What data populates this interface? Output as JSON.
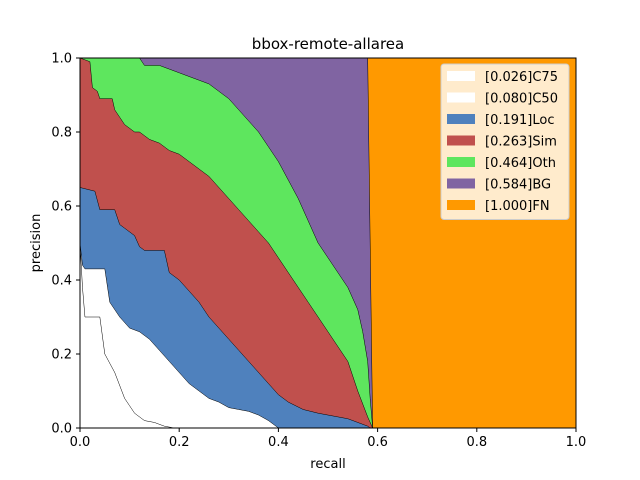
{
  "chart_data": {
    "type": "area",
    "title": "bbox-remote-allarea",
    "xlabel": "recall",
    "ylabel": "precision",
    "xlim": [
      0,
      1
    ],
    "ylim": [
      0,
      1
    ],
    "x_ticks": [
      "0.0",
      "0.2",
      "0.4",
      "0.6",
      "0.8",
      "1.0"
    ],
    "y_ticks": [
      "0.0",
      "0.2",
      "0.4",
      "0.6",
      "0.8",
      "1.0"
    ],
    "legend_position": "top-right",
    "grid": false,
    "series": [
      {
        "name": "[0.026]C75",
        "color": "#ffffff",
        "x": [
          0,
          0.005,
          0.01,
          0.04,
          0.05,
          0.07,
          0.09,
          0.1,
          0.11,
          0.12,
          0.13,
          0.15,
          0.17,
          0.19
        ],
        "y": [
          0.5,
          0.38,
          0.3,
          0.3,
          0.2,
          0.15,
          0.08,
          0.06,
          0.04,
          0.03,
          0.02,
          0.015,
          0.005,
          0
        ]
      },
      {
        "name": "[0.080]C50",
        "color": "#ffffff",
        "x": [
          0,
          0.005,
          0.01,
          0.05,
          0.06,
          0.08,
          0.1,
          0.12,
          0.14,
          0.16,
          0.18,
          0.2,
          0.22,
          0.24,
          0.26,
          0.28,
          0.3,
          0.32,
          0.34,
          0.36,
          0.38,
          0.395,
          0.4
        ],
        "y": [
          0.5,
          0.44,
          0.43,
          0.43,
          0.34,
          0.3,
          0.27,
          0.26,
          0.24,
          0.21,
          0.18,
          0.15,
          0.12,
          0.1,
          0.08,
          0.07,
          0.055,
          0.05,
          0.045,
          0.035,
          0.02,
          0.005,
          0
        ]
      },
      {
        "name": "[0.191]Loc",
        "color": "#4f81bd",
        "x": [
          0,
          0.03,
          0.04,
          0.07,
          0.08,
          0.09,
          0.1,
          0.11,
          0.12,
          0.13,
          0.17,
          0.18,
          0.2,
          0.22,
          0.24,
          0.26,
          0.28,
          0.3,
          0.32,
          0.34,
          0.36,
          0.38,
          0.4,
          0.42,
          0.45,
          0.48,
          0.5,
          0.52,
          0.54,
          0.56,
          0.58,
          0.585
        ],
        "y": [
          0.65,
          0.64,
          0.59,
          0.59,
          0.55,
          0.54,
          0.53,
          0.52,
          0.49,
          0.48,
          0.48,
          0.42,
          0.4,
          0.37,
          0.34,
          0.3,
          0.27,
          0.24,
          0.21,
          0.18,
          0.15,
          0.12,
          0.09,
          0.07,
          0.05,
          0.04,
          0.035,
          0.03,
          0.025,
          0.015,
          0.005,
          0
        ]
      },
      {
        "name": "[0.263]Sim",
        "color": "#c0504d",
        "x": [
          0,
          0.02,
          0.025,
          0.035,
          0.04,
          0.065,
          0.07,
          0.08,
          0.09,
          0.1,
          0.11,
          0.12,
          0.13,
          0.14,
          0.16,
          0.18,
          0.2,
          0.22,
          0.24,
          0.26,
          0.28,
          0.3,
          0.32,
          0.34,
          0.36,
          0.38,
          0.4,
          0.42,
          0.44,
          0.46,
          0.48,
          0.5,
          0.52,
          0.54,
          0.56,
          0.58,
          0.59
        ],
        "y": [
          1.0,
          0.99,
          0.92,
          0.91,
          0.89,
          0.89,
          0.86,
          0.84,
          0.82,
          0.81,
          0.8,
          0.8,
          0.79,
          0.78,
          0.77,
          0.75,
          0.74,
          0.72,
          0.7,
          0.68,
          0.65,
          0.62,
          0.59,
          0.56,
          0.53,
          0.5,
          0.46,
          0.42,
          0.38,
          0.34,
          0.3,
          0.26,
          0.22,
          0.18,
          0.1,
          0.03,
          0
        ]
      },
      {
        "name": "[0.464]Oth",
        "color": "#5ee65e",
        "x": [
          0,
          0.12,
          0.13,
          0.16,
          0.18,
          0.2,
          0.22,
          0.24,
          0.26,
          0.28,
          0.3,
          0.32,
          0.34,
          0.36,
          0.38,
          0.4,
          0.42,
          0.44,
          0.46,
          0.48,
          0.5,
          0.52,
          0.54,
          0.56,
          0.57,
          0.58,
          0.585,
          0.59
        ],
        "y": [
          1.0,
          1.0,
          0.98,
          0.98,
          0.97,
          0.96,
          0.95,
          0.94,
          0.93,
          0.91,
          0.89,
          0.86,
          0.83,
          0.8,
          0.76,
          0.72,
          0.67,
          0.62,
          0.56,
          0.5,
          0.46,
          0.42,
          0.38,
          0.32,
          0.26,
          0.18,
          0.08,
          0
        ]
      },
      {
        "name": "[0.584]BG",
        "color": "#8064a2",
        "x": [
          0,
          0.58,
          0.585,
          0.59
        ],
        "y": [
          1.0,
          1.0,
          0.5,
          0
        ]
      },
      {
        "name": "[1.000]FN",
        "color": "#ff9900",
        "x": [
          0,
          1.0
        ],
        "y": [
          1.0,
          1.0
        ]
      }
    ]
  }
}
